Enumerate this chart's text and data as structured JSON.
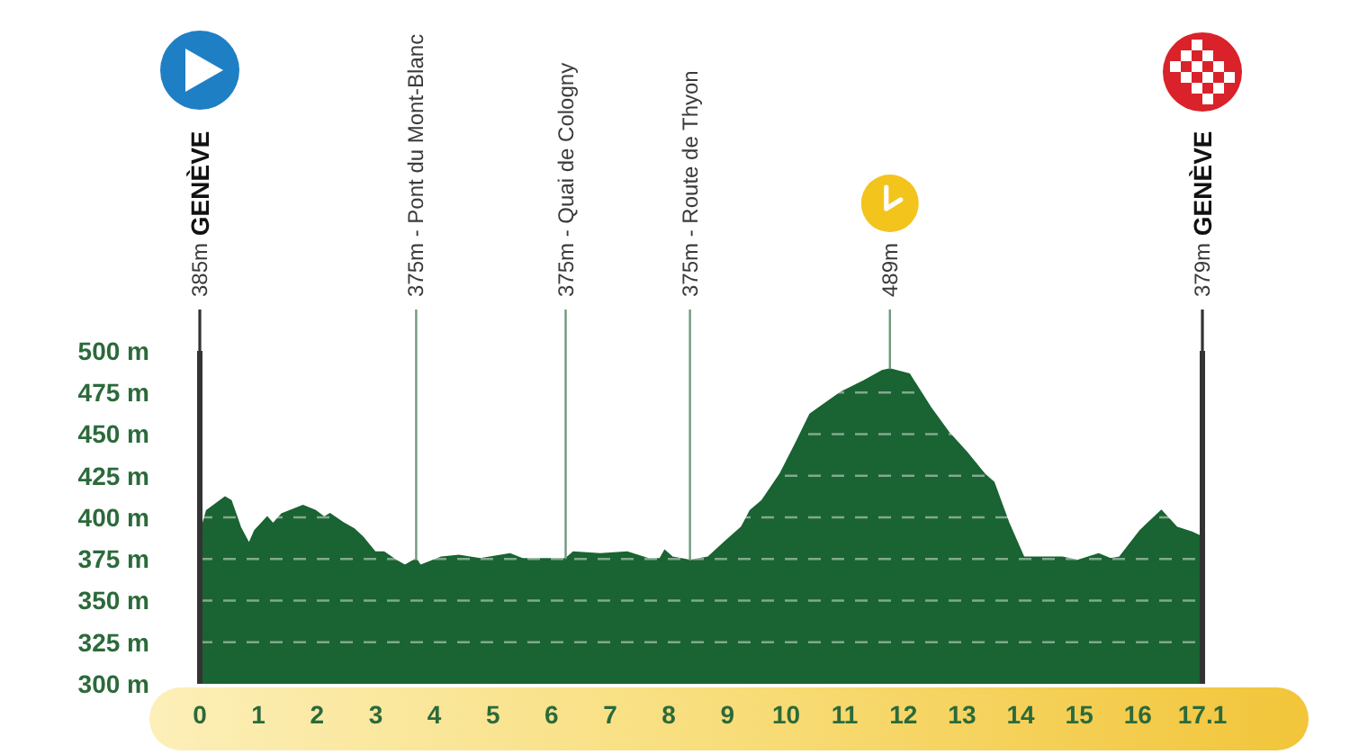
{
  "chart_data": {
    "type": "area",
    "x": [
      0,
      0.12,
      0.43,
      0.53,
      0.69,
      0.84,
      0.94,
      1.15,
      1.25,
      1.4,
      1.76,
      1.97,
      2.12,
      2.22,
      2.43,
      2.63,
      2.78,
      2.99,
      3.14,
      3.35,
      3.5,
      3.69,
      3.76,
      4.12,
      4.42,
      4.78,
      5.29,
      5.5,
      6.24,
      6.37,
      6.83,
      7.29,
      7.65,
      7.85,
      7.93,
      8.06,
      8.21,
      8.36,
      8.67,
      8.98,
      9.24,
      9.39,
      9.59,
      9.9,
      10.16,
      10.41,
      10.93,
      11.33,
      11.64,
      11.77,
      12.1,
      12.46,
      12.77,
      13.08,
      13.38,
      13.54,
      13.79,
      14.05,
      14.71,
      14.97,
      15.33,
      15.53,
      15.69,
      16.04,
      16.4,
      16.66,
      16.92,
      17.1
    ],
    "series": [
      {
        "color": "#1a6332",
        "values": [
          389,
          404,
          412,
          410,
          394,
          384,
          392,
          400,
          396,
          402,
          407,
          404,
          400,
          402,
          397,
          393,
          388,
          379,
          379,
          374,
          371,
          375,
          371,
          376,
          377,
          375,
          378,
          375,
          375,
          379,
          378,
          379,
          375,
          375,
          380,
          376,
          375,
          374,
          376,
          386,
          394,
          404,
          410,
          426,
          444,
          462,
          475,
          482,
          488,
          489,
          486,
          466,
          451,
          439,
          426,
          421,
          397,
          376,
          376,
          374,
          378,
          375,
          376,
          392,
          404,
          394,
          391,
          388
        ]
      }
    ],
    "xlim": [
      0,
      17.1
    ],
    "xticks": [
      0,
      1,
      2,
      3,
      4,
      5,
      6,
      7,
      8,
      9,
      10,
      11,
      12,
      13,
      14,
      15,
      16,
      17.1
    ],
    "ylim": [
      300,
      500
    ],
    "yticks": [
      {
        "value": 300,
        "label": "300 m"
      },
      {
        "value": 325,
        "label": "325 m"
      },
      {
        "value": 350,
        "label": "350 m"
      },
      {
        "value": 375,
        "label": "375 m"
      },
      {
        "value": 400,
        "label": "400 m"
      },
      {
        "value": 425,
        "label": "425 m"
      },
      {
        "value": 450,
        "label": "450 m"
      },
      {
        "value": 475,
        "label": "475 m"
      },
      {
        "value": 500,
        "label": "500 m"
      }
    ],
    "grid": "y",
    "ref_lines": [
      {
        "axis": "x",
        "value": 0,
        "label": "385m GENÈVE",
        "color": "#333333"
      },
      {
        "axis": "x",
        "value": 3.69,
        "label": "375m - Pont du Mont-Blanc",
        "color": "#6f9a7c"
      },
      {
        "axis": "x",
        "value": 6.24,
        "label": "375m - Quai de Cologny",
        "color": "#6f9a7c"
      },
      {
        "axis": "x",
        "value": 8.36,
        "label": "375m - Route de Thyon",
        "color": "#6f9a7c"
      },
      {
        "axis": "x",
        "value": 11.77,
        "label": "489m",
        "color": "#6f9a7c"
      },
      {
        "axis": "x",
        "value": 17.1,
        "label": "379m GENÈVE",
        "color": "#333333"
      }
    ]
  }
}
